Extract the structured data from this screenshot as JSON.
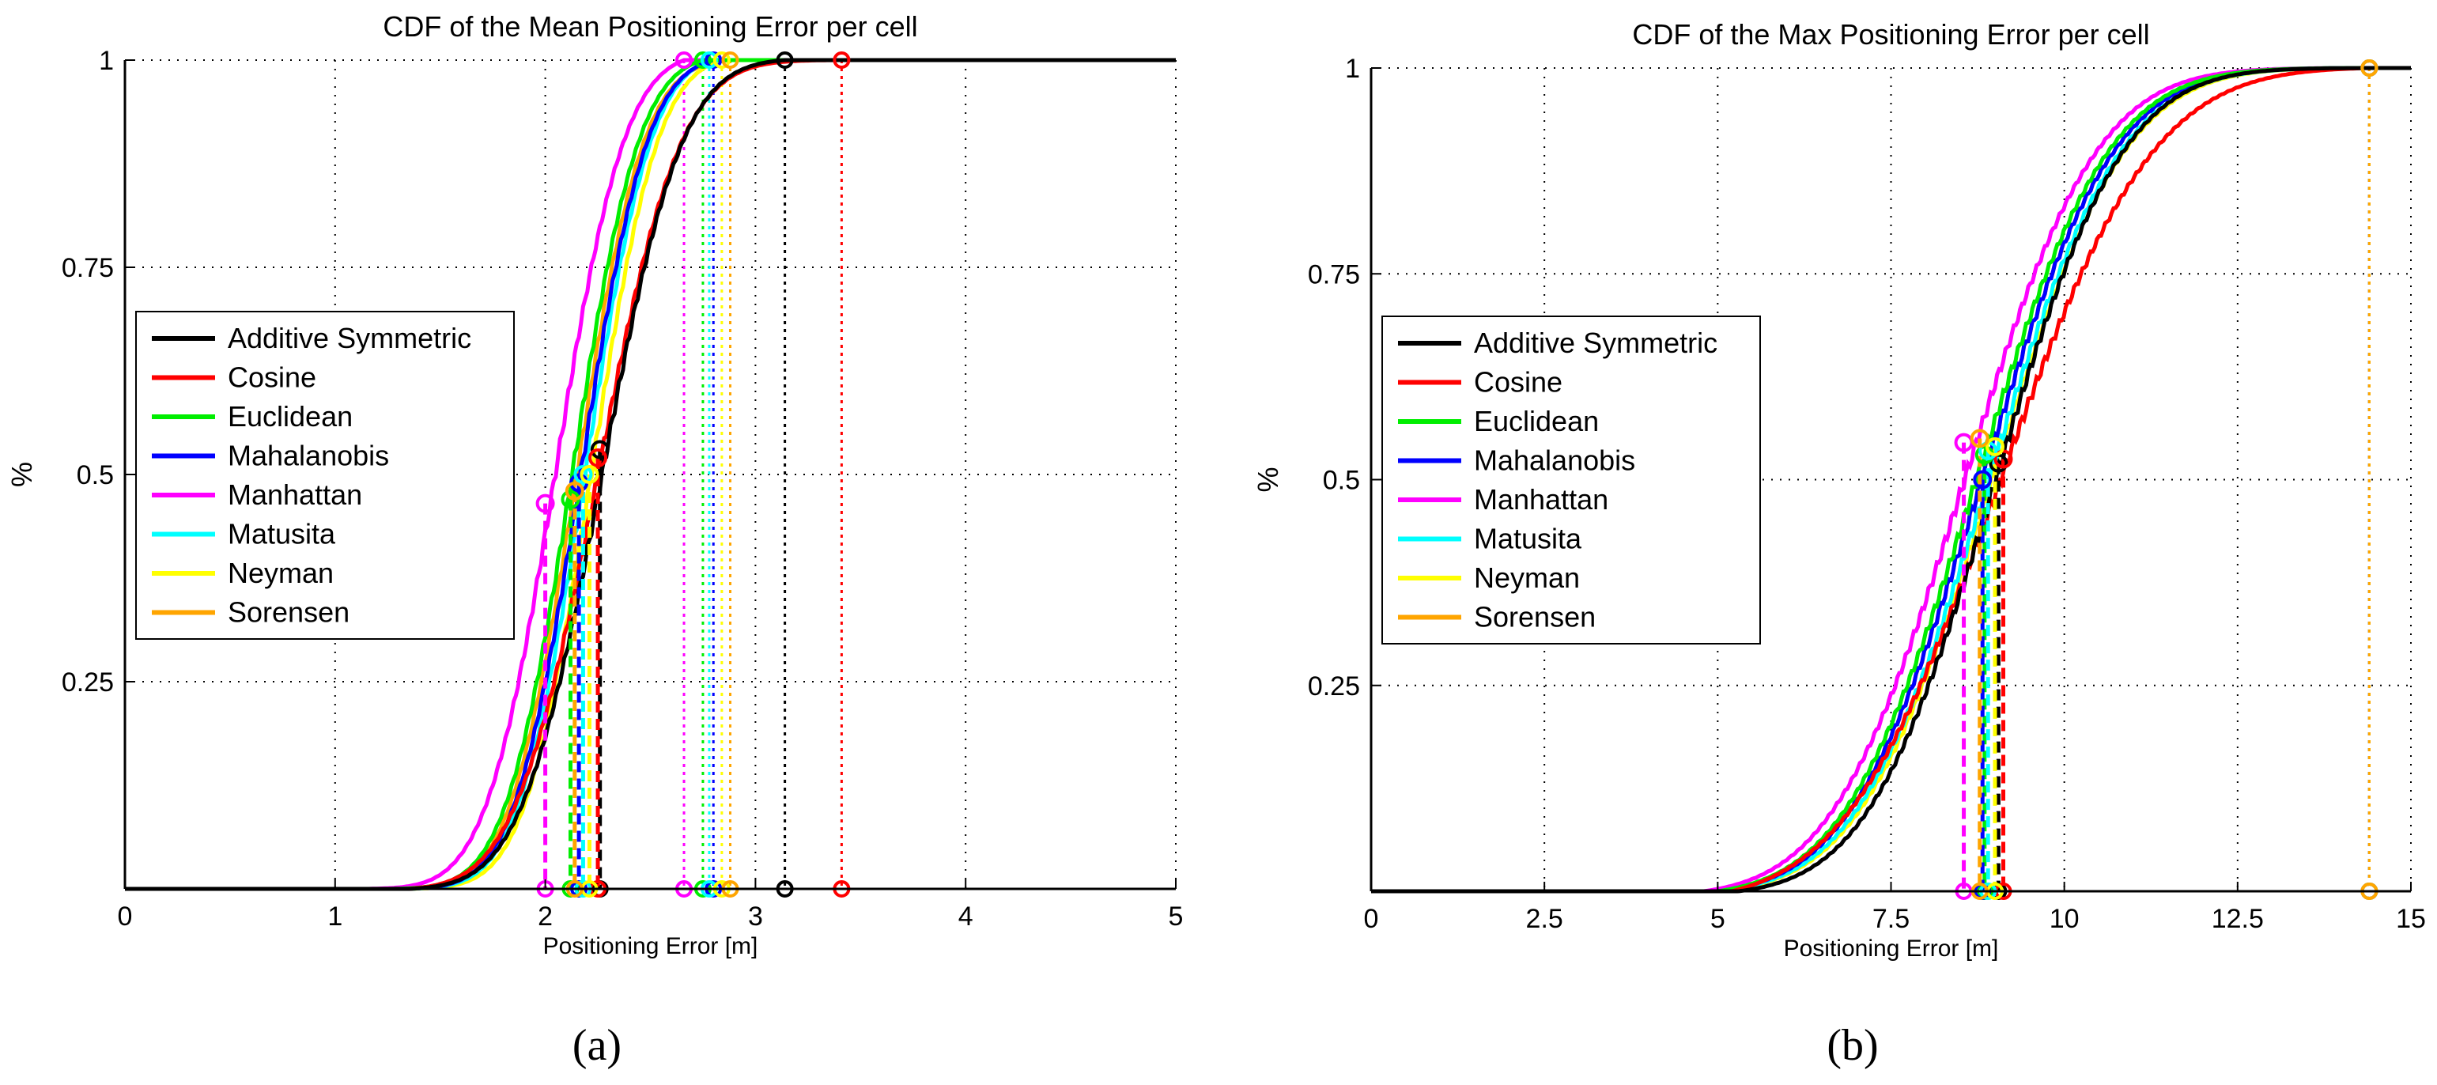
{
  "chart_data": [
    {
      "type": "line",
      "panel_caption": "(a)",
      "title": "CDF of the Mean Positioning Error per cell",
      "xlabel": "Positioning Error [m]",
      "ylabel": "%",
      "xlim": [
        0,
        5
      ],
      "ylim": [
        0,
        1
      ],
      "xticks": [
        0,
        1,
        2,
        3,
        4,
        5
      ],
      "xtick_labels": [
        "0",
        "1",
        "2",
        "3",
        "4",
        "5"
      ],
      "yticks": [
        0.25,
        0.5,
        0.75,
        1
      ],
      "ytick_labels": [
        "0.25",
        "0.5",
        "0.75",
        "1"
      ],
      "grid": true,
      "legend_location": "center-left",
      "series": [
        {
          "name": "Additive Symmetric",
          "color": "#000000",
          "mu": 2.27,
          "sigma": 0.3,
          "start": 1.35,
          "median_x": 2.26,
          "median_y": 0.53,
          "max_x": 3.14
        },
        {
          "name": "Cosine",
          "color": "#ff0000",
          "mu": 2.25,
          "sigma": 0.31,
          "start": 1.35,
          "median_x": 2.25,
          "median_y": 0.52,
          "max_x": 3.41
        },
        {
          "name": "Euclidean",
          "color": "#00ee00",
          "mu": 2.13,
          "sigma": 0.25,
          "start": 1.25,
          "median_x": 2.12,
          "median_y": 0.47,
          "max_x": 2.75
        },
        {
          "name": "Mahalanobis",
          "color": "#0000ff",
          "mu": 2.17,
          "sigma": 0.25,
          "start": 1.3,
          "median_x": 2.16,
          "median_y": 0.49,
          "max_x": 2.8
        },
        {
          "name": "Manhattan",
          "color": "#ff00ff",
          "mu": 2.05,
          "sigma": 0.26,
          "start": 1.15,
          "median_x": 2.0,
          "median_y": 0.465,
          "max_x": 2.66
        },
        {
          "name": "Matusita",
          "color": "#00ffff",
          "mu": 2.19,
          "sigma": 0.25,
          "start": 1.3,
          "median_x": 2.18,
          "median_y": 0.5,
          "max_x": 2.78
        },
        {
          "name": "Neyman",
          "color": "#ffff00",
          "mu": 2.22,
          "sigma": 0.25,
          "start": 1.3,
          "median_x": 2.21,
          "median_y": 0.5,
          "max_x": 2.84
        },
        {
          "name": "Sorensen",
          "color": "#ffa500",
          "mu": 2.15,
          "sigma": 0.25,
          "start": 1.28,
          "median_x": 2.14,
          "median_y": 0.48,
          "max_x": 2.88
        }
      ]
    },
    {
      "type": "line",
      "panel_caption": "(b)",
      "title": "CDF of the Max Positioning Error per cell",
      "xlabel": "Positioning Error [m]",
      "ylabel": "%",
      "xlim": [
        0,
        15
      ],
      "ylim": [
        0,
        1
      ],
      "xticks": [
        0,
        2.5,
        5,
        7.5,
        10,
        12.5,
        15
      ],
      "xtick_labels": [
        "0",
        "2.5",
        "5",
        "7.5",
        "10",
        "12.5",
        "15"
      ],
      "yticks": [
        0.25,
        0.5,
        0.75,
        1
      ],
      "ytick_labels": [
        "0.25",
        "0.5",
        "0.75",
        "1"
      ],
      "grid": true,
      "legend_location": "center-left",
      "series": [
        {
          "name": "Additive Symmetric",
          "color": "#000000",
          "mu": 9.0,
          "sigma": 1.45,
          "start": 5.3,
          "median_x": 9.05,
          "median_y": 0.52,
          "max_x": 14.4
        },
        {
          "name": "Cosine",
          "color": "#ff0000",
          "mu": 9.05,
          "sigma": 1.75,
          "start": 5.2,
          "median_x": 9.12,
          "median_y": 0.525,
          "max_x": 14.4
        },
        {
          "name": "Euclidean",
          "color": "#00ee00",
          "mu": 8.72,
          "sigma": 1.5,
          "start": 5.0,
          "median_x": 8.85,
          "median_y": 0.53,
          "max_x": 14.4
        },
        {
          "name": "Mahalanobis",
          "color": "#0000ff",
          "mu": 8.8,
          "sigma": 1.5,
          "start": 5.0,
          "median_x": 8.82,
          "median_y": 0.5,
          "max_x": 14.4
        },
        {
          "name": "Manhattan",
          "color": "#ff00ff",
          "mu": 8.55,
          "sigma": 1.5,
          "start": 4.8,
          "median_x": 8.55,
          "median_y": 0.545,
          "max_x": 14.4
        },
        {
          "name": "Matusita",
          "color": "#00ffff",
          "mu": 8.9,
          "sigma": 1.5,
          "start": 5.0,
          "median_x": 8.9,
          "median_y": 0.535,
          "max_x": 14.4
        },
        {
          "name": "Neyman",
          "color": "#ffff00",
          "mu": 8.95,
          "sigma": 1.5,
          "start": 5.0,
          "median_x": 9.0,
          "median_y": 0.54,
          "max_x": 14.4
        },
        {
          "name": "Sorensen",
          "color": "#ffa500",
          "mu": 8.8,
          "sigma": 1.5,
          "start": 5.0,
          "median_x": 8.78,
          "median_y": 0.55,
          "max_x": 14.4
        }
      ]
    }
  ]
}
